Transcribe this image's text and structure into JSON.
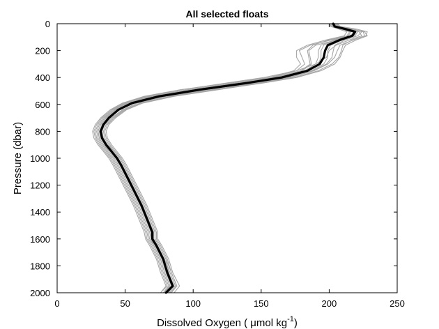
{
  "chart_data": {
    "type": "line",
    "title": "All selected floats",
    "xlabel": "Dissolved Oxygen (   μmol kg",
    "xlabel_superscript": "-1",
    "xlabel_close": ")",
    "ylabel": "Pressure (dbar)",
    "xlim": [
      0,
      250
    ],
    "ylim": [
      2000,
      0
    ],
    "y_reversed": true,
    "x_ticks": [
      0,
      50,
      100,
      150,
      200,
      250
    ],
    "y_ticks": [
      0,
      200,
      400,
      600,
      800,
      1000,
      1200,
      1400,
      1600,
      1800,
      2000
    ],
    "grid": false,
    "colors": {
      "profiles": "#a6a6a6",
      "mean": "#000000"
    },
    "series": [
      {
        "role": "mean profile",
        "x": [
          203,
          204,
          212,
          219,
          217,
          208,
          199,
          197,
          196,
          193,
          184,
          165,
          140,
          105,
          75,
          55,
          45,
          38,
          34,
          32,
          33,
          36,
          40,
          44,
          47,
          52,
          57,
          62,
          66,
          70,
          70,
          73,
          78,
          81,
          85,
          80
        ],
        "y": [
          0,
          20,
          40,
          60,
          90,
          120,
          160,
          200,
          250,
          300,
          350,
          400,
          440,
          490,
          540,
          590,
          640,
          700,
          750,
          800,
          850,
          900,
          950,
          1000,
          1050,
          1150,
          1250,
          1350,
          1450,
          1550,
          1600,
          1650,
          1750,
          1850,
          1950,
          2000
        ]
      }
    ],
    "profiles": [
      {
        "x": [
          201,
          203,
          215,
          222,
          224,
          215,
          205,
          200,
          198,
          190,
          176,
          152,
          125,
          92,
          66,
          49,
          40,
          33,
          29,
          27,
          28,
          31,
          35,
          39,
          42,
          47,
          52,
          57,
          61,
          65,
          66,
          69,
          74,
          77,
          81,
          76
        ],
        "y": [
          0,
          20,
          40,
          60,
          90,
          120,
          160,
          200,
          250,
          300,
          350,
          400,
          440,
          490,
          540,
          590,
          640,
          700,
          750,
          800,
          850,
          900,
          950,
          1000,
          1050,
          1150,
          1250,
          1350,
          1450,
          1550,
          1600,
          1650,
          1750,
          1850,
          1950,
          2000
        ]
      },
      {
        "x": [
          204,
          206,
          214,
          221,
          219,
          206,
          190,
          185,
          186,
          187,
          180,
          160,
          134,
          99,
          70,
          52,
          43,
          36,
          32,
          30,
          31,
          34,
          38,
          42,
          45,
          50,
          55,
          60,
          64,
          68,
          69,
          71,
          76,
          79,
          83,
          79
        ],
        "y": [
          0,
          20,
          40,
          60,
          90,
          120,
          160,
          200,
          250,
          300,
          350,
          400,
          440,
          490,
          540,
          590,
          640,
          700,
          750,
          800,
          850,
          900,
          950,
          1000,
          1050,
          1150,
          1250,
          1350,
          1450,
          1550,
          1600,
          1650,
          1750,
          1850,
          1950,
          2000
        ]
      },
      {
        "x": [
          202,
          205,
          216,
          226,
          228,
          220,
          212,
          210,
          208,
          204,
          194,
          176,
          152,
          118,
          85,
          62,
          50,
          42,
          37,
          35,
          36,
          39,
          43,
          47,
          50,
          55,
          60,
          65,
          69,
          73,
          73,
          76,
          81,
          84,
          88,
          84
        ],
        "y": [
          0,
          20,
          40,
          60,
          90,
          120,
          160,
          200,
          250,
          300,
          350,
          400,
          440,
          490,
          540,
          590,
          640,
          700,
          750,
          800,
          850,
          900,
          950,
          1000,
          1050,
          1150,
          1250,
          1350,
          1450,
          1550,
          1600,
          1650,
          1750,
          1850,
          1950,
          2000
        ]
      },
      {
        "x": [
          200,
          202,
          210,
          216,
          214,
          202,
          186,
          178,
          180,
          182,
          176,
          158,
          132,
          96,
          68,
          50,
          41,
          34,
          30,
          28,
          29,
          32,
          36,
          40,
          43,
          48,
          53,
          58,
          62,
          66,
          67,
          70,
          75,
          78,
          82,
          78
        ],
        "y": [
          0,
          20,
          40,
          60,
          90,
          120,
          160,
          200,
          250,
          300,
          350,
          400,
          440,
          490,
          540,
          590,
          640,
          700,
          750,
          800,
          850,
          900,
          950,
          1000,
          1050,
          1150,
          1250,
          1350,
          1450,
          1550,
          1600,
          1650,
          1750,
          1850,
          1950,
          2000
        ]
      },
      {
        "x": [
          205,
          207,
          218,
          224,
          221,
          212,
          204,
          203,
          202,
          198,
          188,
          168,
          144,
          110,
          78,
          57,
          46,
          39,
          34,
          31,
          32,
          36,
          41,
          45,
          48,
          53,
          58,
          63,
          67,
          71,
          71,
          74,
          79,
          83,
          87,
          82
        ],
        "y": [
          0,
          20,
          40,
          60,
          90,
          120,
          160,
          200,
          250,
          300,
          350,
          400,
          440,
          490,
          540,
          590,
          640,
          700,
          750,
          800,
          850,
          900,
          950,
          1000,
          1050,
          1150,
          1250,
          1350,
          1450,
          1550,
          1600,
          1650,
          1750,
          1850,
          1950,
          2000
        ]
      },
      {
        "x": [
          203,
          204,
          211,
          218,
          216,
          204,
          194,
          192,
          192,
          190,
          182,
          163,
          138,
          102,
          72,
          53,
          44,
          37,
          33,
          31,
          32,
          35,
          39,
          43,
          46,
          51,
          56,
          61,
          65,
          69,
          69,
          72,
          77,
          80,
          84,
          80
        ],
        "y": [
          0,
          20,
          40,
          60,
          90,
          120,
          160,
          200,
          250,
          300,
          350,
          400,
          440,
          490,
          540,
          590,
          640,
          700,
          750,
          800,
          850,
          900,
          950,
          1000,
          1050,
          1150,
          1250,
          1350,
          1450,
          1550,
          1600,
          1650,
          1750,
          1850,
          1950,
          2000
        ]
      },
      {
        "x": [
          202,
          203,
          213,
          220,
          218,
          210,
          201,
          199,
          199,
          196,
          187,
          170,
          147,
          114,
          80,
          59,
          48,
          40,
          35,
          33,
          34,
          37,
          42,
          46,
          49,
          54,
          59,
          64,
          68,
          72,
          72,
          75,
          80,
          82,
          86,
          81
        ],
        "y": [
          0,
          20,
          40,
          60,
          90,
          120,
          160,
          200,
          250,
          300,
          350,
          400,
          440,
          490,
          540,
          590,
          640,
          700,
          750,
          800,
          850,
          900,
          950,
          1000,
          1050,
          1150,
          1250,
          1350,
          1450,
          1550,
          1600,
          1650,
          1750,
          1850,
          1950,
          2000
        ]
      },
      {
        "x": [
          204,
          205,
          209,
          215,
          213,
          200,
          188,
          184,
          185,
          186,
          179,
          160,
          133,
          97,
          68,
          51,
          42,
          35,
          31,
          29,
          30,
          33,
          37,
          41,
          44,
          49,
          54,
          59,
          63,
          67,
          68,
          71,
          76,
          79,
          83,
          78
        ],
        "y": [
          0,
          20,
          40,
          60,
          90,
          120,
          160,
          200,
          250,
          300,
          350,
          400,
          440,
          490,
          540,
          590,
          640,
          700,
          750,
          800,
          850,
          900,
          950,
          1000,
          1050,
          1150,
          1250,
          1350,
          1450,
          1550,
          1600,
          1650,
          1750,
          1850,
          1950,
          2000
        ]
      },
      {
        "x": [
          201,
          204,
          217,
          225,
          226,
          218,
          208,
          206,
          204,
          199,
          189,
          171,
          148,
          116,
          83,
          61,
          49,
          41,
          36,
          34,
          35,
          38,
          42,
          46,
          49,
          54,
          59,
          64,
          68,
          72,
          72,
          75,
          80,
          84,
          88,
          83
        ],
        "y": [
          0,
          20,
          40,
          60,
          90,
          120,
          160,
          200,
          250,
          300,
          350,
          400,
          440,
          490,
          540,
          590,
          640,
          700,
          750,
          800,
          850,
          900,
          950,
          1000,
          1050,
          1150,
          1250,
          1350,
          1450,
          1550,
          1600,
          1650,
          1750,
          1850,
          1950,
          2000
        ]
      },
      {
        "x": [
          203,
          205,
          212,
          219,
          215,
          205,
          196,
          194,
          194,
          192,
          182,
          162,
          136,
          100,
          71,
          52,
          43,
          36,
          32,
          30,
          31,
          34,
          39,
          43,
          46,
          51,
          56,
          61,
          65,
          69,
          69,
          72,
          77,
          80,
          84,
          79
        ],
        "y": [
          0,
          20,
          40,
          60,
          90,
          120,
          160,
          200,
          250,
          300,
          350,
          400,
          440,
          490,
          540,
          590,
          640,
          700,
          750,
          800,
          850,
          900,
          950,
          1000,
          1050,
          1150,
          1250,
          1350,
          1450,
          1550,
          1600,
          1650,
          1750,
          1850,
          1950,
          2000
        ]
      },
      {
        "x": [
          206,
          208,
          220,
          228,
          227,
          217,
          210,
          209,
          207,
          202,
          192,
          174,
          150,
          119,
          86,
          63,
          51,
          43,
          38,
          36,
          37,
          40,
          44,
          48,
          51,
          56,
          61,
          66,
          70,
          74,
          74,
          77,
          82,
          85,
          90,
          86
        ],
        "y": [
          0,
          20,
          40,
          60,
          90,
          120,
          160,
          200,
          250,
          300,
          350,
          400,
          440,
          490,
          540,
          590,
          640,
          700,
          750,
          800,
          850,
          900,
          950,
          1000,
          1050,
          1150,
          1250,
          1350,
          1450,
          1550,
          1600,
          1650,
          1750,
          1850,
          1950,
          2000
        ]
      },
      {
        "x": [
          200,
          201,
          207,
          213,
          211,
          198,
          184,
          176,
          176,
          179,
          174,
          156,
          128,
          91,
          64,
          48,
          39,
          32,
          28,
          26,
          27,
          30,
          34,
          38,
          41,
          46,
          51,
          56,
          60,
          64,
          65,
          68,
          73,
          76,
          80,
          76
        ],
        "y": [
          0,
          20,
          40,
          60,
          90,
          120,
          160,
          200,
          250,
          300,
          350,
          400,
          440,
          490,
          540,
          590,
          640,
          700,
          750,
          800,
          850,
          900,
          950,
          1000,
          1050,
          1150,
          1250,
          1350,
          1450,
          1550,
          1600,
          1650,
          1750,
          1850,
          1950,
          2000
        ]
      }
    ]
  }
}
